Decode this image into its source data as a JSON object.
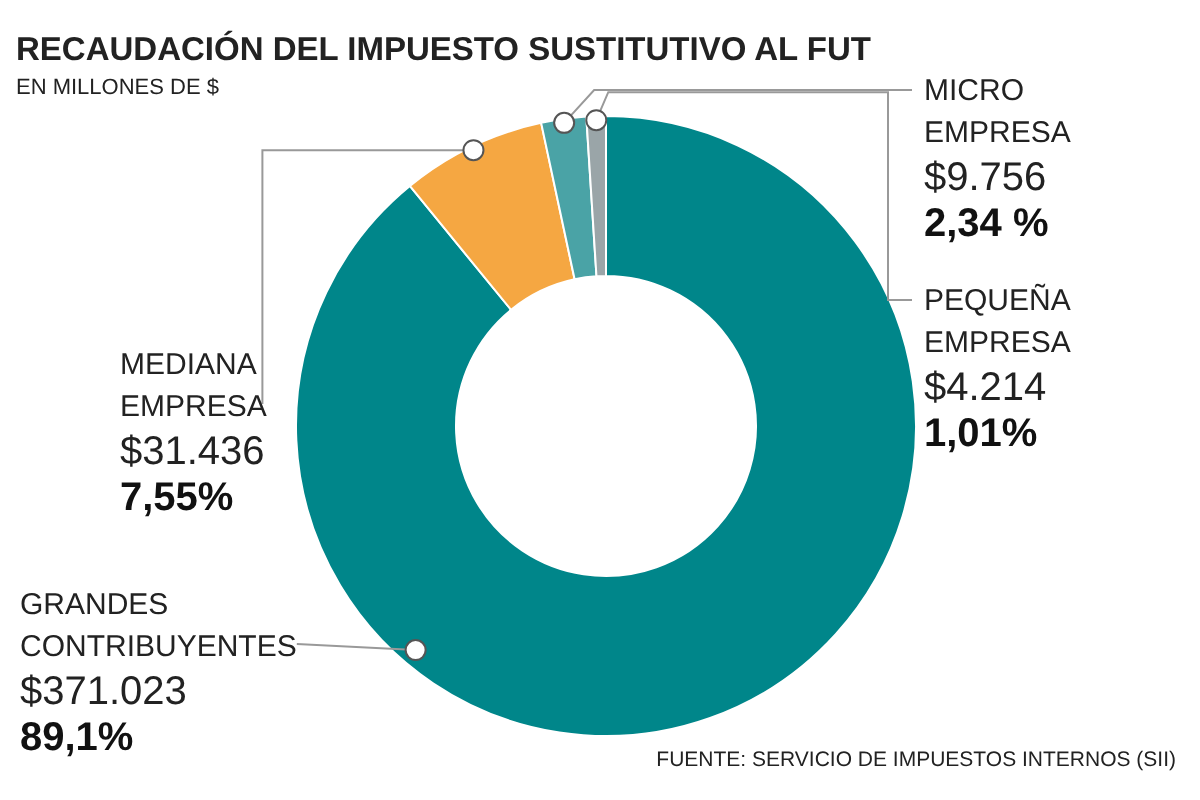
{
  "chart_data": {
    "type": "donut",
    "title": "RECAUDACIÓN DEL IMPUESTO SUSTITUTIVO AL FUT",
    "subtitle": "EN MILLONES DE $",
    "categories": [
      "GRANDES CONTRIBUYENTES",
      "MEDIANA EMPRESA",
      "MICRO EMPRESA",
      "PEQUEÑA EMPRESA"
    ],
    "values": [
      371023,
      31436,
      9756,
      4214
    ],
    "value_labels": [
      "$371.023",
      "$31.436",
      "$9.756",
      "$4.214"
    ],
    "colors": [
      "#00868a",
      "#f5a742",
      "#4aa3a6",
      "#9aa5a8"
    ],
    "annotations": [
      "89,1%",
      "7,55%",
      "2,34 %",
      "1,01%",
      "FUENTE: SERVICIO DE IMPUESTOS INTERNOS (SII)"
    ]
  }
}
